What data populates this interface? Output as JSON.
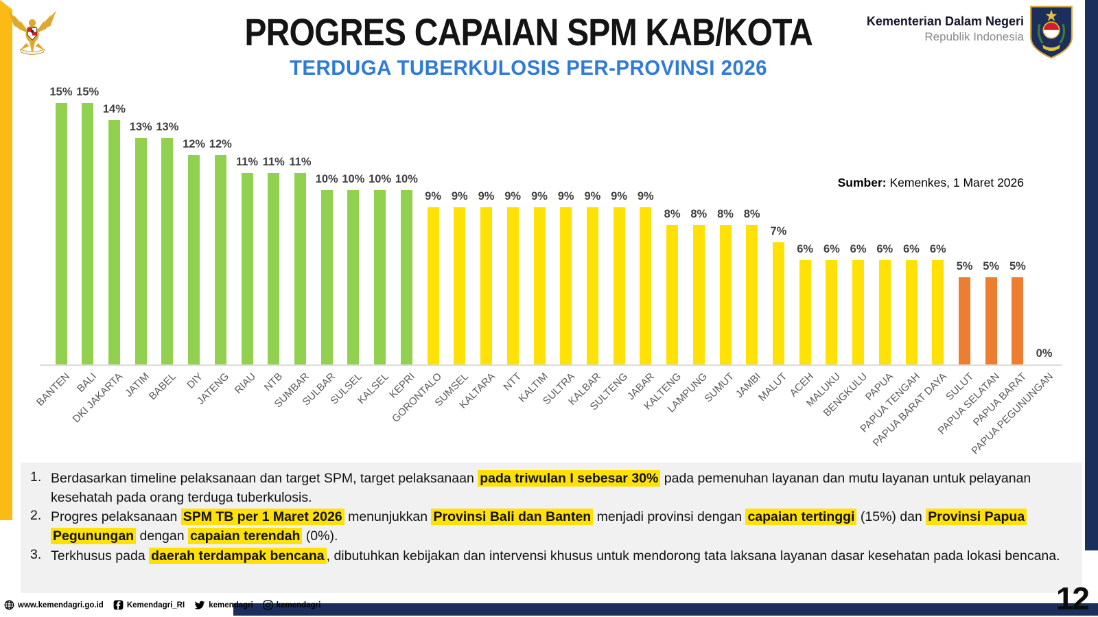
{
  "header": {
    "title": "PROGRES CAPAIAN SPM KAB/KOTA",
    "subtitle": "TERDUGA TUBERKULOSIS PER-PROVINSI 2026",
    "ministry_name": "Kementerian Dalam Negeri",
    "ministry_sub": "Republik Indonesia"
  },
  "chart_data": {
    "type": "bar",
    "title": "Progres capaian SPM terduga tuberkulosis per provinsi 2026",
    "unit": "%",
    "ylim": [
      0,
      15
    ],
    "grid": false,
    "value_labels": "above bars",
    "category_label_rotation": 45,
    "categories": [
      "BANTEN",
      "BALI",
      "DKI JAKARTA",
      "JATIM",
      "BABEL",
      "DIY",
      "JATENG",
      "RIAU",
      "NTB",
      "SUMBAR",
      "SULBAR",
      "SULSEL",
      "KALSEL",
      "KEPRI",
      "GORONTALO",
      "SUMSEL",
      "KALTARA",
      "NTT",
      "KALTIM",
      "SULTRA",
      "KALBAR",
      "SULTENG",
      "JABAR",
      "KALTENG",
      "LAMPUNG",
      "SUMUT",
      "JAMBI",
      "MALUT",
      "ACEH",
      "MALUKU",
      "BENGKULU",
      "PAPUA",
      "PAPUA TENGAH",
      "PAPUA BARAT DAYA",
      "SULUT",
      "PAPUA SELATAN",
      "PAPUA BARAT",
      "PAPUA PEGUNUNGAN"
    ],
    "values": [
      15,
      15,
      14,
      13,
      13,
      12,
      12,
      11,
      11,
      11,
      10,
      10,
      10,
      10,
      9,
      9,
      9,
      9,
      9,
      9,
      9,
      9,
      9,
      8,
      8,
      8,
      8,
      7,
      6,
      6,
      6,
      6,
      6,
      6,
      5,
      5,
      5,
      0
    ],
    "bar_groups": [
      "green",
      "green",
      "green",
      "green",
      "green",
      "green",
      "green",
      "green",
      "green",
      "green",
      "green",
      "green",
      "green",
      "green",
      "yellow",
      "yellow",
      "yellow",
      "yellow",
      "yellow",
      "yellow",
      "yellow",
      "yellow",
      "yellow",
      "yellow",
      "yellow",
      "yellow",
      "yellow",
      "yellow",
      "yellow",
      "yellow",
      "yellow",
      "yellow",
      "yellow",
      "yellow",
      "orange",
      "orange",
      "orange",
      "none"
    ],
    "colors": {
      "green": "#92D050",
      "yellow": "#FFE105",
      "orange": "#ED7D31"
    },
    "source_bold": "Sumber:",
    "source_rest": " Kemenkes, 1 Maret 2026"
  },
  "notes": [
    {
      "number": "1.",
      "segments": [
        {
          "t": "Berdasarkan timeline pelaksanaan dan target SPM, target pelaksanaan ",
          "h": false
        },
        {
          "t": "pada triwulan I sebesar 30%",
          "h": true
        },
        {
          "t": " pada pemenuhan layanan dan mutu layanan untuk pelayanan kesehatah pada orang terduga tuberkulosis.",
          "h": false
        }
      ]
    },
    {
      "number": "2.",
      "segments": [
        {
          "t": "Progres pelaksanaan ",
          "h": false
        },
        {
          "t": "SPM TB per 1 Maret 2026",
          "h": true
        },
        {
          "t": " menunjukkan ",
          "h": false
        },
        {
          "t": "Provinsi Bali dan Banten",
          "h": true
        },
        {
          "t": " menjadi provinsi dengan ",
          "h": false
        },
        {
          "t": "capaian tertinggi",
          "h": true
        },
        {
          "t": " (15%) dan ",
          "h": false
        },
        {
          "t": "Provinsi Papua Pegunungan",
          "h": true
        },
        {
          "t": " dengan ",
          "h": false
        },
        {
          "t": "capaian terendah",
          "h": true
        },
        {
          "t": " (0%).",
          "h": false
        }
      ]
    },
    {
      "number": "3.",
      "segments": [
        {
          "t": "Terkhusus pada ",
          "h": false
        },
        {
          "t": "daerah terdampak bencana",
          "h": true
        },
        {
          "t": ", dibutuhkan kebijakan dan intervensi khusus untuk mendorong tata laksana layanan dasar kesehatan pada lokasi bencana.",
          "h": false
        }
      ]
    }
  ],
  "footer": {
    "website": "www.kemendagri.go.id",
    "facebook": "Kemendagri_RI",
    "twitter": "kemendagri",
    "instagram": "kemendagri",
    "page_number": "12"
  }
}
